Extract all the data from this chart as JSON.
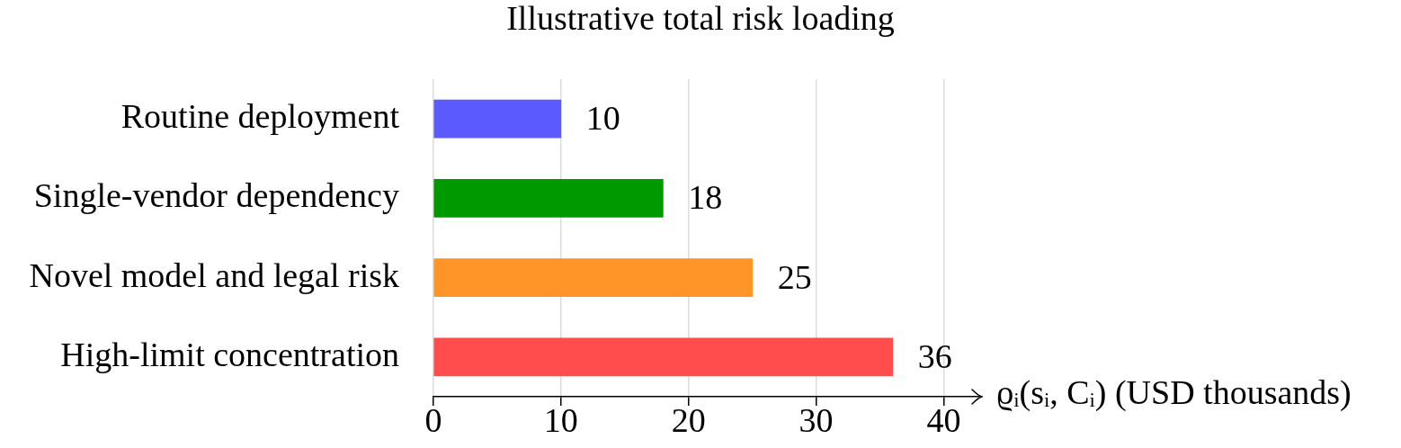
{
  "chart_data": {
    "type": "bar",
    "orientation": "horizontal",
    "title": "Illustrative total risk loading",
    "xlabel": "ϱᵢ(sᵢ, Cᵢ) (USD thousands)",
    "categories": [
      "Routine deployment",
      "Single-vendor dependency",
      "Novel model and legal risk",
      "High-limit concentration"
    ],
    "values": [
      10,
      18,
      25,
      36
    ],
    "colors": [
      "#5a5aff",
      "#009900",
      "#ff9429",
      "#ff4d4d"
    ],
    "xlim": [
      0,
      43
    ],
    "xticks": [
      0,
      10,
      20,
      30,
      40
    ],
    "grid": "x",
    "data_labels": true,
    "legend": false
  }
}
